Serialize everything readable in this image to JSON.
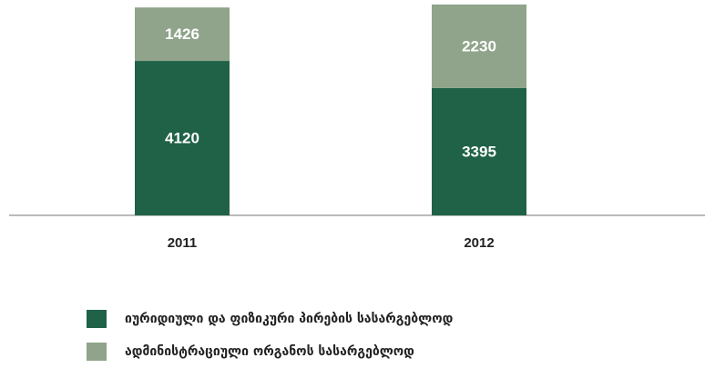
{
  "chart_data": {
    "type": "stacked_bar",
    "categories": [
      "2011",
      "2012"
    ],
    "series": [
      {
        "name": "იურიდიული და ფიზიკური პირების სასარგებლოდ",
        "color": "#1f6248",
        "values": [
          4120,
          3395
        ]
      },
      {
        "name": "ადმინისტრაციული ორგანოს სასარგებლოდ",
        "color": "#8fa48a",
        "values": [
          1426,
          2230
        ]
      }
    ],
    "ylim": [
      0,
      5600
    ]
  }
}
